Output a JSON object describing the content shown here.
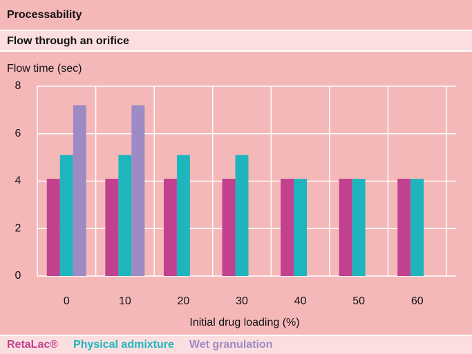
{
  "chart_data": {
    "type": "bar",
    "title": "Processability",
    "subtitle": "Flow through an orifice",
    "y_label": "Flow time (sec)",
    "x_label": "Initial drug loading (%)",
    "categories": [
      "0",
      "10",
      "20",
      "30",
      "40",
      "50",
      "60"
    ],
    "series": [
      {
        "name": "RetaLac®",
        "color": "#c2418f",
        "values": [
          4.1,
          4.1,
          4.1,
          4.1,
          4.1,
          4.1,
          4.1
        ]
      },
      {
        "name": "Physical admixture",
        "color": "#1fb5bd",
        "values": [
          5.1,
          5.1,
          5.1,
          5.1,
          4.1,
          4.1,
          4.1
        ]
      },
      {
        "name": "Wet granulation",
        "color": "#9e8ac4",
        "values": [
          7.2,
          7.2,
          null,
          null,
          null,
          null,
          null
        ]
      }
    ],
    "ylim": [
      0,
      8
    ],
    "yticks": [
      0,
      2,
      4,
      6,
      8
    ],
    "grid": true
  }
}
